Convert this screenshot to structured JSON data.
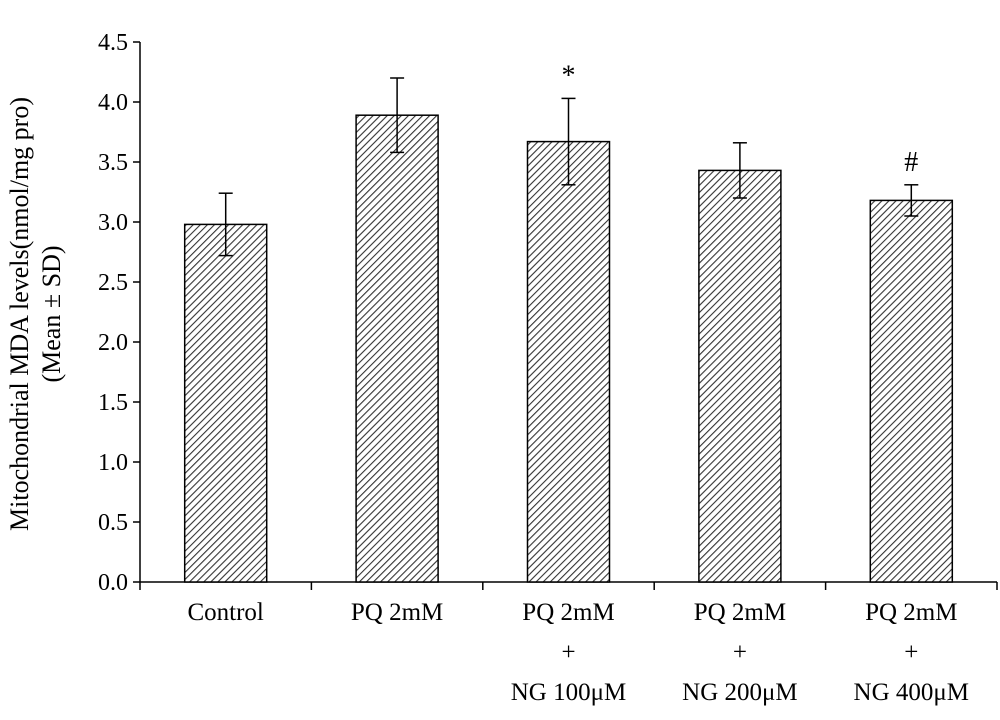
{
  "chart_data": {
    "type": "bar",
    "ylabel_line1": "Mitochondrial MDA levels(nmol/mg pro)",
    "ylabel_line2": "(Mean ± SD)",
    "ylim": [
      0,
      4.5
    ],
    "yticks": [
      "0.0",
      "0.5",
      "1.0",
      "1.5",
      "2.0",
      "2.5",
      "3.0",
      "3.5",
      "4.0",
      "4.5"
    ],
    "grid": false,
    "bar_pattern": "diagonal-hatch",
    "categories": [
      {
        "lines": [
          "Control"
        ]
      },
      {
        "lines": [
          "PQ 2mM"
        ]
      },
      {
        "lines": [
          "PQ 2mM",
          "+",
          "NG 100μM"
        ]
      },
      {
        "lines": [
          "PQ 2mM",
          "+",
          "NG 200μM"
        ]
      },
      {
        "lines": [
          "PQ 2mM",
          "+",
          "NG 400μM"
        ]
      }
    ],
    "values": [
      2.98,
      3.89,
      3.67,
      3.43,
      3.18
    ],
    "errors": [
      0.26,
      0.31,
      0.36,
      0.23,
      0.13
    ],
    "annotations": [
      "",
      "",
      "*",
      "",
      "#"
    ]
  }
}
